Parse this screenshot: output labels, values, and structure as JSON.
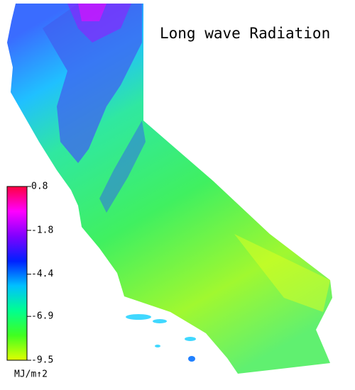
{
  "title": "Long wave Radiation",
  "colorbar": {
    "lim": [
      -9.5,
      0.8
    ],
    "ticks": [
      0.8,
      -1.8,
      -4.4,
      -6.9,
      -9.5
    ],
    "unit": "MJ/m↑2",
    "colors": [
      "#ff0040",
      "#ff00ff",
      "#8000ff",
      "#0020ff",
      "#00c0ff",
      "#00ff90",
      "#40ff20",
      "#e0ff00"
    ]
  }
}
